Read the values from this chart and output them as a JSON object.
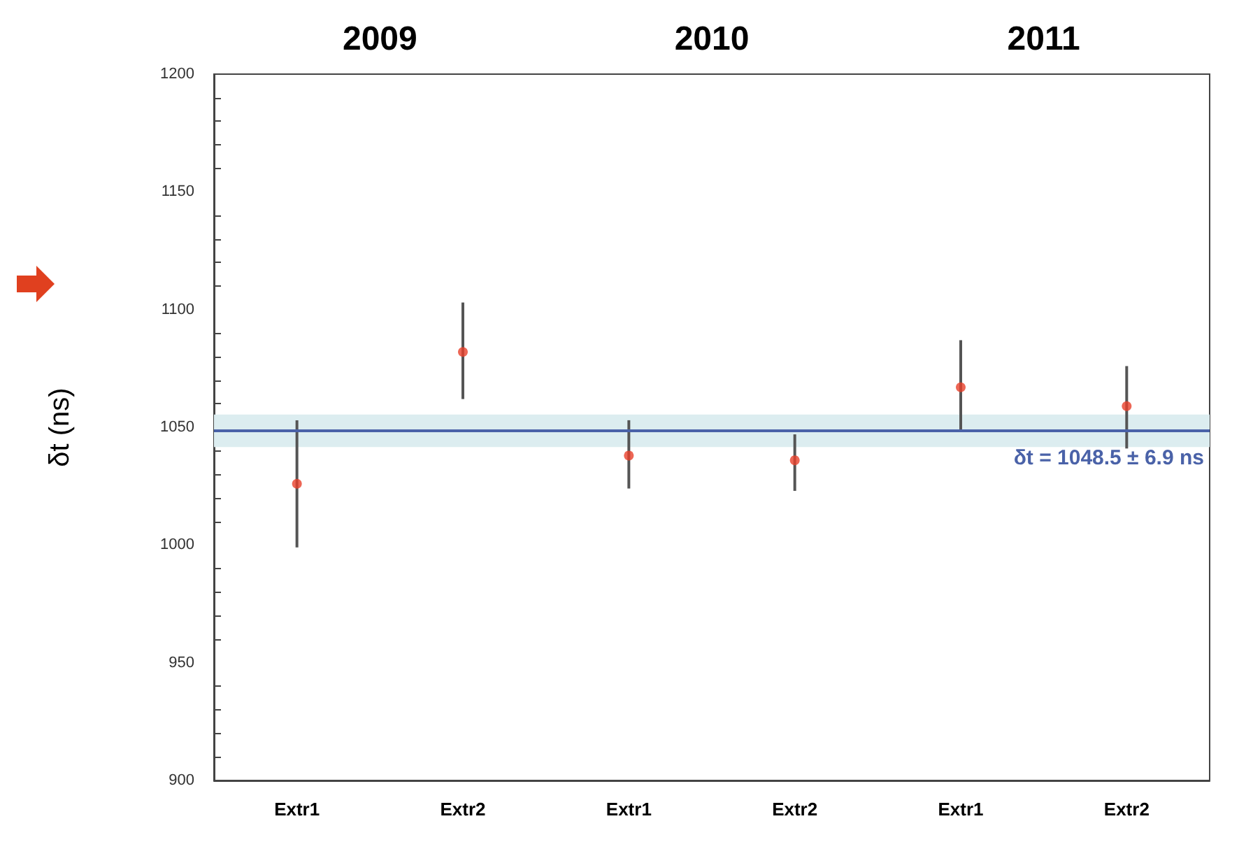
{
  "chart_data": {
    "type": "scatter",
    "ylabel": "δt (ns)",
    "categories": [
      "Extr1",
      "Extr2",
      "Extr1",
      "Extr2",
      "Extr1",
      "Extr2"
    ],
    "series": [
      {
        "color": "#e8402a",
        "values": [
          1026,
          1082,
          1038,
          1036,
          1067,
          1059
        ],
        "errors": [
          [
            999,
            1053
          ],
          [
            1062,
            1103
          ],
          [
            1024,
            1053
          ],
          [
            1023,
            1047
          ],
          [
            1049,
            1087
          ],
          [
            1041,
            1076
          ]
        ]
      }
    ],
    "ylim": [
      900,
      1200
    ],
    "yticks": [
      900,
      950,
      1000,
      1050,
      1100,
      1150,
      1200
    ],
    "grid": false,
    "marker": "circle",
    "ref_lines": [
      {
        "axis": "y",
        "value": 1048.5,
        "label": "δt = 1048.5 ± 6.9 ns",
        "color": "#4a62a8"
      }
    ],
    "bands": [
      {
        "axis": "y",
        "from": 1041.6,
        "to": 1055.4,
        "color": "#dcedf0"
      }
    ],
    "annotations": [
      "2009",
      "2010",
      "2011"
    ]
  }
}
